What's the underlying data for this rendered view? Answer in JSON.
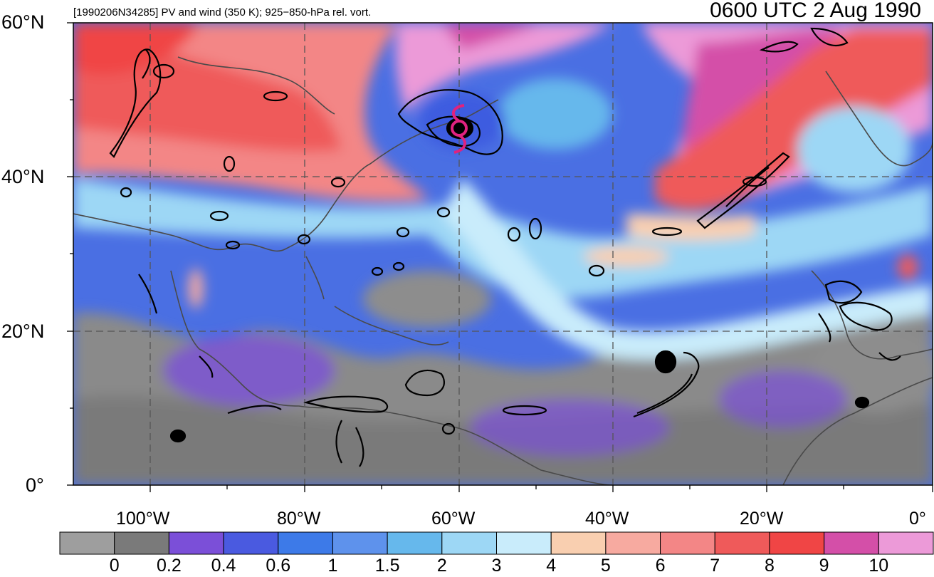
{
  "header": {
    "title_left": "[1990206N34285] PV and wind (350 K); 925−850-hPa rel. vort.",
    "title_right": "0600 UTC 2 Aug 1990"
  },
  "map": {
    "lat_labels": [
      "60°N",
      "40°N",
      "20°N",
      "0°"
    ],
    "lon_labels": [
      "100°W",
      "80°W",
      "60°W",
      "40°W",
      "20°W",
      "0°"
    ],
    "extent": {
      "lon_min": -110,
      "lon_max": 0,
      "lat_min": 0,
      "lat_max": 60
    },
    "storm_symbol": "tropical-cyclone-icon",
    "storm_color": "#e0227f"
  },
  "colorbar": {
    "colors": [
      "#9e9e9e",
      "#7a7a7a",
      "#7b4fd8",
      "#4a5ae0",
      "#3d7ae8",
      "#5e92ec",
      "#66b8ec",
      "#9dd7f5",
      "#c9ecfb",
      "#f9cfb0",
      "#f7aaa0",
      "#f38686",
      "#ef5a5a",
      "#f04545",
      "#d44fa8",
      "#ec9ad8"
    ],
    "labels": [
      "0",
      "0.2",
      "0.4",
      "0.6",
      "1",
      "1.5",
      "2",
      "3",
      "4",
      "5",
      "6",
      "7",
      "8",
      "9",
      "10"
    ]
  }
}
